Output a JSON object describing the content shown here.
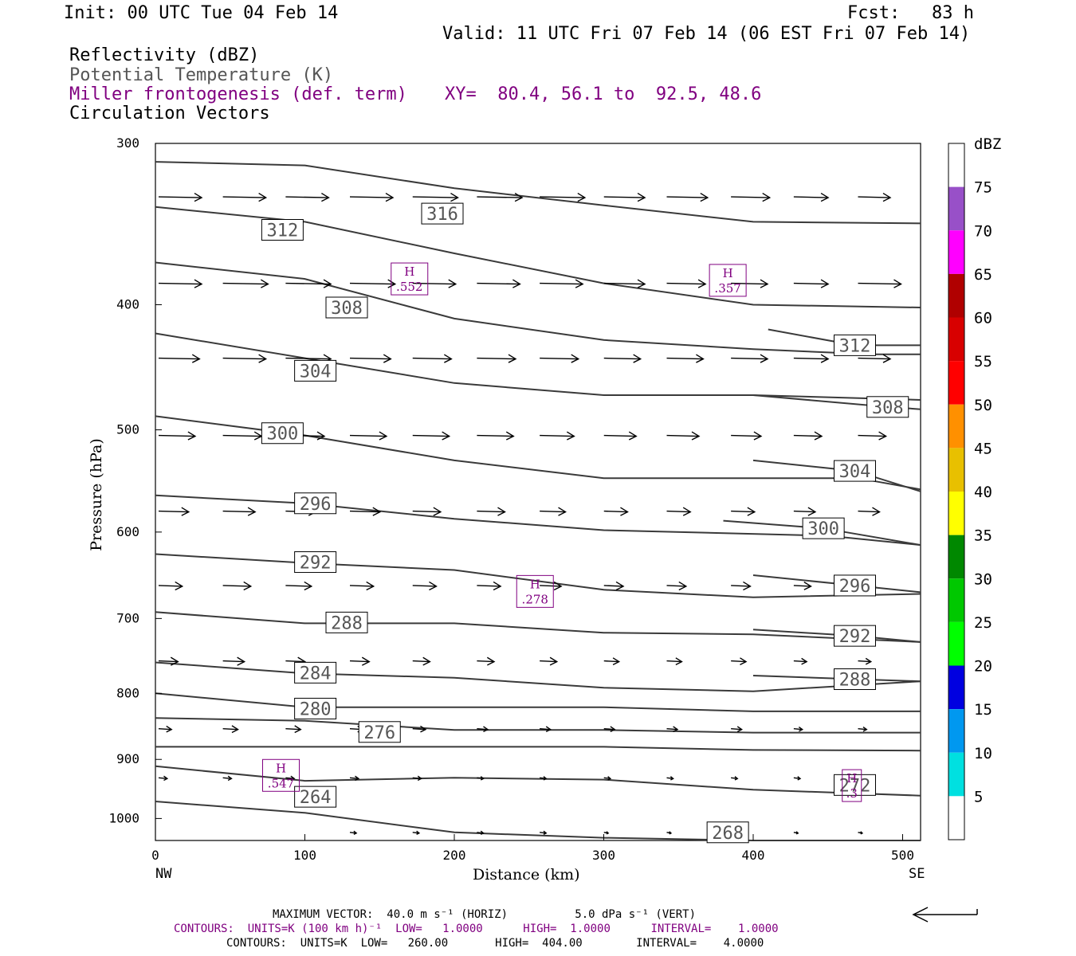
{
  "header": {
    "init": "Init: 00 UTC Tue 04 Feb 14",
    "fcst": "Fcst:   83 h",
    "valid": "Valid: 11 UTC Fri 07 Feb 14 (06 EST Fri 07 Feb 14)",
    "field1": "Reflectivity (dBZ)",
    "field2": "Potential Temperature (K)",
    "field3": "Miller frontogenesis (def. term)",
    "xy": "XY=  80.4, 56.1 to  92.5, 48.6",
    "field4": "Circulation Vectors"
  },
  "footer": {
    "max_vector": "MAXIMUM VECTOR:  40.0 m s⁻¹ (HORIZ)          5.0 dPa s⁻¹ (VERT)",
    "contours_miller": "CONTOURS:  UNITS=K (100 km h)⁻¹  LOW=   1.0000      HIGH=  1.0000      INTERVAL=    1.0000",
    "contours_theta": "CONTOURS:  UNITS=K  LOW=   260.00       HIGH=  404.00        INTERVAL=    4.0000"
  },
  "colors": {
    "theta": "#3a3a3a",
    "miller": "#800080",
    "vector": "#000000"
  },
  "colorbar": {
    "title": "dBZ",
    "labels": [
      "5",
      "10",
      "15",
      "20",
      "25",
      "30",
      "35",
      "40",
      "45",
      "50",
      "55",
      "60",
      "65",
      "70",
      "75"
    ],
    "colors": [
      "#ffffff",
      "#00e0e0",
      "#0098f0",
      "#0000e0",
      "#00ff00",
      "#00c800",
      "#008800",
      "#ffff00",
      "#e8c000",
      "#ff9000",
      "#ff0000",
      "#d80000",
      "#b00000",
      "#ff00ff",
      "#9850c8",
      "#ffffff"
    ]
  },
  "chart_data": {
    "type": "contour cross-section",
    "xlabel": "Distance (km)",
    "ylabel": "Pressure (hPa)",
    "xlim": [
      0,
      512
    ],
    "ylim": [
      1040,
      300
    ],
    "y_scale": "log",
    "x_ticks": [
      0,
      100,
      200,
      300,
      400,
      500
    ],
    "y_ticks": [
      300,
      400,
      500,
      600,
      700,
      800,
      900,
      1000
    ],
    "x_end_labels": {
      "left": "NW",
      "right": "SE"
    },
    "theta_contours": [
      {
        "label": "316",
        "label_at": [
          192,
          340
        ],
        "pts": [
          [
            0,
            310
          ],
          [
            100,
            312
          ],
          [
            200,
            325
          ],
          [
            300,
            335
          ],
          [
            400,
            345
          ],
          [
            512,
            346
          ]
        ]
      },
      {
        "label": "312",
        "label_at": [
          85,
          350
        ],
        "pts": [
          [
            0,
            336
          ],
          [
            100,
            345
          ],
          [
            200,
            365
          ],
          [
            300,
            385
          ],
          [
            400,
            400
          ],
          [
            512,
            402
          ]
        ]
      },
      {
        "label": "308",
        "label_at": [
          128,
          402
        ],
        "pts": [
          [
            0,
            371
          ],
          [
            100,
            382
          ],
          [
            200,
            410
          ],
          [
            300,
            426
          ],
          [
            400,
            433
          ],
          [
            480,
            437
          ],
          [
            512,
            437
          ]
        ]
      },
      {
        "label": "312",
        "label_at": [
          468,
          430
        ],
        "pts": [
          [
            410,
            418
          ],
          [
            468,
            430
          ],
          [
            512,
            430
          ]
        ]
      },
      {
        "label": "304",
        "label_at": [
          107,
          450
        ],
        "pts": [
          [
            0,
            421
          ],
          [
            100,
            440
          ],
          [
            200,
            460
          ],
          [
            300,
            470
          ],
          [
            400,
            470
          ],
          [
            512,
            474
          ]
        ]
      },
      {
        "label": "308",
        "label_at": [
          490,
          480
        ],
        "pts": [
          [
            400,
            470
          ],
          [
            490,
            480
          ],
          [
            512,
            482
          ]
        ]
      },
      {
        "label": "300",
        "label_at": [
          85,
          503
        ],
        "pts": [
          [
            0,
            488
          ],
          [
            100,
            505
          ],
          [
            200,
            528
          ],
          [
            300,
            545
          ],
          [
            400,
            545
          ],
          [
            470,
            545
          ],
          [
            512,
            556
          ]
        ]
      },
      {
        "label": "304",
        "label_at": [
          468,
          538
        ],
        "pts": [
          [
            400,
            528
          ],
          [
            468,
            538
          ],
          [
            512,
            558
          ]
        ]
      },
      {
        "label": "296",
        "label_at": [
          107,
          570
        ],
        "pts": [
          [
            0,
            562
          ],
          [
            100,
            570
          ],
          [
            200,
            586
          ],
          [
            300,
            598
          ],
          [
            450,
            604
          ],
          [
            512,
            614
          ]
        ]
      },
      {
        "label": "300",
        "label_at": [
          447,
          596
        ],
        "pts": [
          [
            380,
            588
          ],
          [
            447,
            596
          ],
          [
            512,
            614
          ]
        ]
      },
      {
        "label": "292",
        "label_at": [
          107,
          633
        ],
        "pts": [
          [
            0,
            624
          ],
          [
            100,
            634
          ],
          [
            200,
            642
          ],
          [
            300,
            665
          ],
          [
            400,
            674
          ],
          [
            512,
            670
          ]
        ]
      },
      {
        "label": "296",
        "label_at": [
          468,
          660
        ],
        "pts": [
          [
            400,
            648
          ],
          [
            468,
            660
          ],
          [
            512,
            668
          ]
        ]
      },
      {
        "label": "288",
        "label_at": [
          128,
          705
        ],
        "pts": [
          [
            0,
            692
          ],
          [
            100,
            706
          ],
          [
            200,
            706
          ],
          [
            300,
            718
          ],
          [
            400,
            720
          ],
          [
            512,
            730
          ]
        ]
      },
      {
        "label": "292",
        "label_at": [
          468,
          722
        ],
        "pts": [
          [
            400,
            714
          ],
          [
            468,
            722
          ],
          [
            512,
            730
          ]
        ]
      },
      {
        "label": "284",
        "label_at": [
          107,
          771
        ],
        "pts": [
          [
            0,
            757
          ],
          [
            100,
            772
          ],
          [
            200,
            778
          ],
          [
            300,
            792
          ],
          [
            400,
            797
          ],
          [
            512,
            783
          ]
        ]
      },
      {
        "label": "288",
        "label_at": [
          468,
          780
        ],
        "pts": [
          [
            400,
            775
          ],
          [
            468,
            780
          ],
          [
            512,
            783
          ]
        ]
      },
      {
        "label": "280",
        "label_at": [
          107,
          822
        ],
        "pts": [
          [
            0,
            800
          ],
          [
            100,
            820
          ],
          [
            200,
            820
          ],
          [
            300,
            820
          ],
          [
            400,
            826
          ],
          [
            512,
            826
          ]
        ]
      },
      {
        "label": "276",
        "label_at": [
          150,
          857
        ],
        "pts": [
          [
            0,
            836
          ],
          [
            100,
            840
          ],
          [
            200,
            854
          ],
          [
            300,
            854
          ],
          [
            400,
            858
          ],
          [
            512,
            858
          ]
        ]
      },
      {
        "label": "272",
        "label_at": [
          468,
          942
        ],
        "pts": [
          [
            0,
            880
          ],
          [
            200,
            880
          ],
          [
            300,
            880
          ],
          [
            400,
            885
          ],
          [
            512,
            886
          ]
        ]
      },
      {
        "label": "264",
        "label_at": [
          107,
          962
        ],
        "pts": [
          [
            0,
            911
          ],
          [
            100,
            935
          ],
          [
            200,
            930
          ],
          [
            300,
            933
          ],
          [
            400,
            950
          ],
          [
            512,
            960
          ]
        ]
      },
      {
        "label": "268",
        "label_at": [
          383,
          1025
        ],
        "pts": [
          [
            0,
            970
          ],
          [
            100,
            990
          ],
          [
            200,
            1025
          ],
          [
            300,
            1035
          ],
          [
            400,
            1040
          ],
          [
            512,
            1040
          ]
        ]
      }
    ],
    "frontogenesis_maxima": [
      {
        "label": "H",
        "value": ".552",
        "at": [
          170,
          382
        ]
      },
      {
        "label": "H",
        "value": ".357",
        "at": [
          383,
          383
        ]
      },
      {
        "label": "H",
        "value": ".278",
        "at": [
          254,
          667
        ]
      },
      {
        "label": "H",
        "value": ".547",
        "at": [
          84,
          926
        ]
      },
      {
        "label": "H",
        "value": ".3",
        "at": [
          466,
          943
        ]
      }
    ],
    "circulation_vectors_rows": [
      {
        "p": 330,
        "x": [
          0,
          43,
          85,
          128,
          170,
          213,
          255,
          298,
          340,
          383,
          425,
          468
        ],
        "len": [
          40,
          40,
          40,
          40,
          42,
          42,
          42,
          38,
          38,
          36,
          32,
          30
        ]
      },
      {
        "p": 385,
        "x": [
          0,
          43,
          85,
          128,
          170,
          213,
          255,
          298,
          340,
          383,
          425,
          468
        ],
        "len": [
          40,
          42,
          42,
          42,
          40,
          40,
          40,
          38,
          36,
          34,
          32,
          40
        ]
      },
      {
        "p": 440,
        "x": [
          0,
          43,
          85,
          128,
          170,
          213,
          255,
          298,
          340,
          383,
          425,
          468
        ],
        "len": [
          38,
          40,
          42,
          38,
          36,
          36,
          36,
          34,
          34,
          34,
          32,
          30
        ]
      },
      {
        "p": 505,
        "x": [
          0,
          43,
          85,
          128,
          170,
          213,
          255,
          298,
          340,
          383,
          425,
          468
        ],
        "len": [
          34,
          36,
          36,
          34,
          34,
          34,
          32,
          30,
          30,
          28,
          26,
          26
        ]
      },
      {
        "p": 578,
        "x": [
          0,
          43,
          85,
          128,
          170,
          213,
          255,
          298,
          340,
          383,
          425,
          468
        ],
        "len": [
          28,
          30,
          28,
          28,
          26,
          26,
          24,
          22,
          22,
          22,
          20,
          20
        ]
      },
      {
        "p": 660,
        "x": [
          0,
          43,
          85,
          128,
          170,
          213,
          255,
          298,
          340,
          383,
          425,
          468
        ],
        "len": [
          22,
          26,
          24,
          22,
          22,
          22,
          20,
          18,
          18,
          18,
          16,
          16
        ]
      },
      {
        "p": 755,
        "x": [
          0,
          43,
          85,
          128,
          170,
          213,
          255,
          298,
          340,
          383,
          425,
          468
        ],
        "len": [
          18,
          20,
          18,
          18,
          16,
          16,
          16,
          14,
          14,
          14,
          12,
          12
        ]
      },
      {
        "p": 852,
        "x": [
          0,
          43,
          85,
          128,
          170,
          213,
          255,
          298,
          340,
          383,
          425,
          468
        ],
        "len": [
          12,
          14,
          14,
          12,
          12,
          10,
          10,
          10,
          10,
          10,
          8,
          8
        ]
      },
      {
        "p": 930,
        "x": [
          0,
          43,
          85,
          128,
          170,
          213,
          255,
          298,
          340,
          383,
          425,
          468
        ],
        "len": [
          8,
          8,
          8,
          8,
          8,
          6,
          6,
          6,
          6,
          6,
          6,
          6
        ]
      },
      {
        "p": 1025,
        "x": [
          128,
          170,
          213,
          255,
          298,
          340,
          383,
          425,
          468
        ],
        "len": [
          6,
          6,
          6,
          6,
          4,
          4,
          4,
          4,
          4
        ]
      }
    ]
  }
}
